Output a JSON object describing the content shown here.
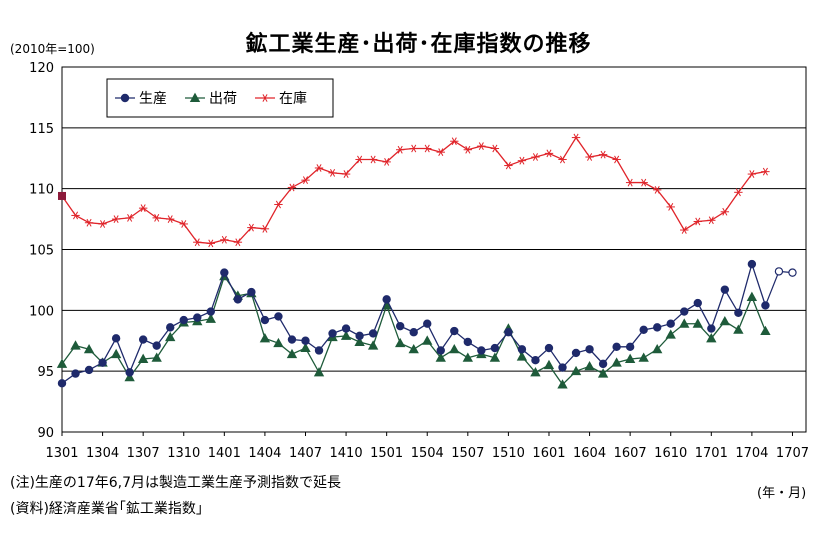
{
  "chart_data": {
    "type": "line",
    "title": "鉱工業生産･出荷･在庫指数の推移",
    "unit_label": "(2010年=100)",
    "x_unit_label": "(年・月)",
    "ylim": [
      90,
      120
    ],
    "y_ticks": [
      "90",
      "95",
      "100",
      "105",
      "110",
      "115",
      "120"
    ],
    "x_ticks": [
      "1301",
      "1304",
      "1307",
      "1310",
      "1401",
      "1404",
      "1407",
      "1410",
      "1501",
      "1504",
      "1507",
      "1510",
      "1601",
      "1604",
      "1607",
      "1610",
      "1701",
      "1704",
      "1707"
    ],
    "grid": true,
    "legend": "top-left",
    "colors": {
      "production": "#1f2a6b",
      "shipments": "#1e5b3a",
      "inventory": "#e0242a",
      "inventory_first": "#8b1a3a"
    },
    "series": [
      {
        "name": "生産",
        "marker": "circle",
        "values": [
          94.0,
          94.8,
          95.1,
          95.7,
          97.7,
          94.9,
          97.6,
          97.1,
          98.6,
          99.2,
          99.4,
          99.9,
          103.1,
          100.9,
          101.5,
          99.2,
          99.5,
          97.6,
          97.5,
          96.7,
          98.1,
          98.5,
          97.9,
          98.1,
          100.9,
          98.7,
          98.2,
          98.9,
          96.7,
          98.3,
          97.4,
          96.7,
          96.9,
          98.2,
          96.8,
          95.9,
          96.9,
          95.3,
          96.5,
          96.8,
          95.6,
          97.0,
          97.0,
          98.4,
          98.6,
          98.9,
          99.9,
          100.6,
          98.5,
          101.7,
          99.8,
          103.8,
          100.4,
          103.2,
          103.1
        ],
        "forecast_from_index": 53
      },
      {
        "name": "出荷",
        "marker": "triangle",
        "values": [
          95.6,
          97.1,
          96.8,
          95.7,
          96.4,
          94.5,
          96.0,
          96.1,
          97.8,
          99.0,
          99.1,
          99.3,
          102.8,
          101.2,
          101.4,
          97.7,
          97.3,
          96.4,
          96.9,
          94.9,
          97.8,
          97.9,
          97.4,
          97.1,
          100.4,
          97.3,
          96.8,
          97.5,
          96.1,
          96.8,
          96.1,
          96.4,
          96.1,
          98.5,
          96.2,
          94.9,
          95.5,
          93.9,
          95.0,
          95.4,
          94.8,
          95.7,
          96.0,
          96.1,
          96.8,
          98.0,
          98.9,
          98.9,
          97.7,
          99.1,
          98.4,
          101.1,
          98.3
        ]
      },
      {
        "name": "在庫",
        "marker": "asterisk",
        "values": [
          109.4,
          107.8,
          107.2,
          107.1,
          107.5,
          107.6,
          108.4,
          107.6,
          107.5,
          107.1,
          105.6,
          105.5,
          105.8,
          105.6,
          106.8,
          106.7,
          108.7,
          110.1,
          110.7,
          111.7,
          111.3,
          111.2,
          112.4,
          112.4,
          112.2,
          113.2,
          113.3,
          113.3,
          113.0,
          113.9,
          113.2,
          113.5,
          113.3,
          111.9,
          112.3,
          112.6,
          112.9,
          112.4,
          114.2,
          112.6,
          112.8,
          112.4,
          110.5,
          110.5,
          109.9,
          108.5,
          106.6,
          107.3,
          107.4,
          108.1,
          109.7,
          111.2,
          111.4
        ]
      }
    ]
  },
  "notes": {
    "note1": "(注)生産の17年6,7月は製造工業生産予測指数で延長",
    "note2": "(資料)経済産業省｢鉱工業指数｣"
  }
}
